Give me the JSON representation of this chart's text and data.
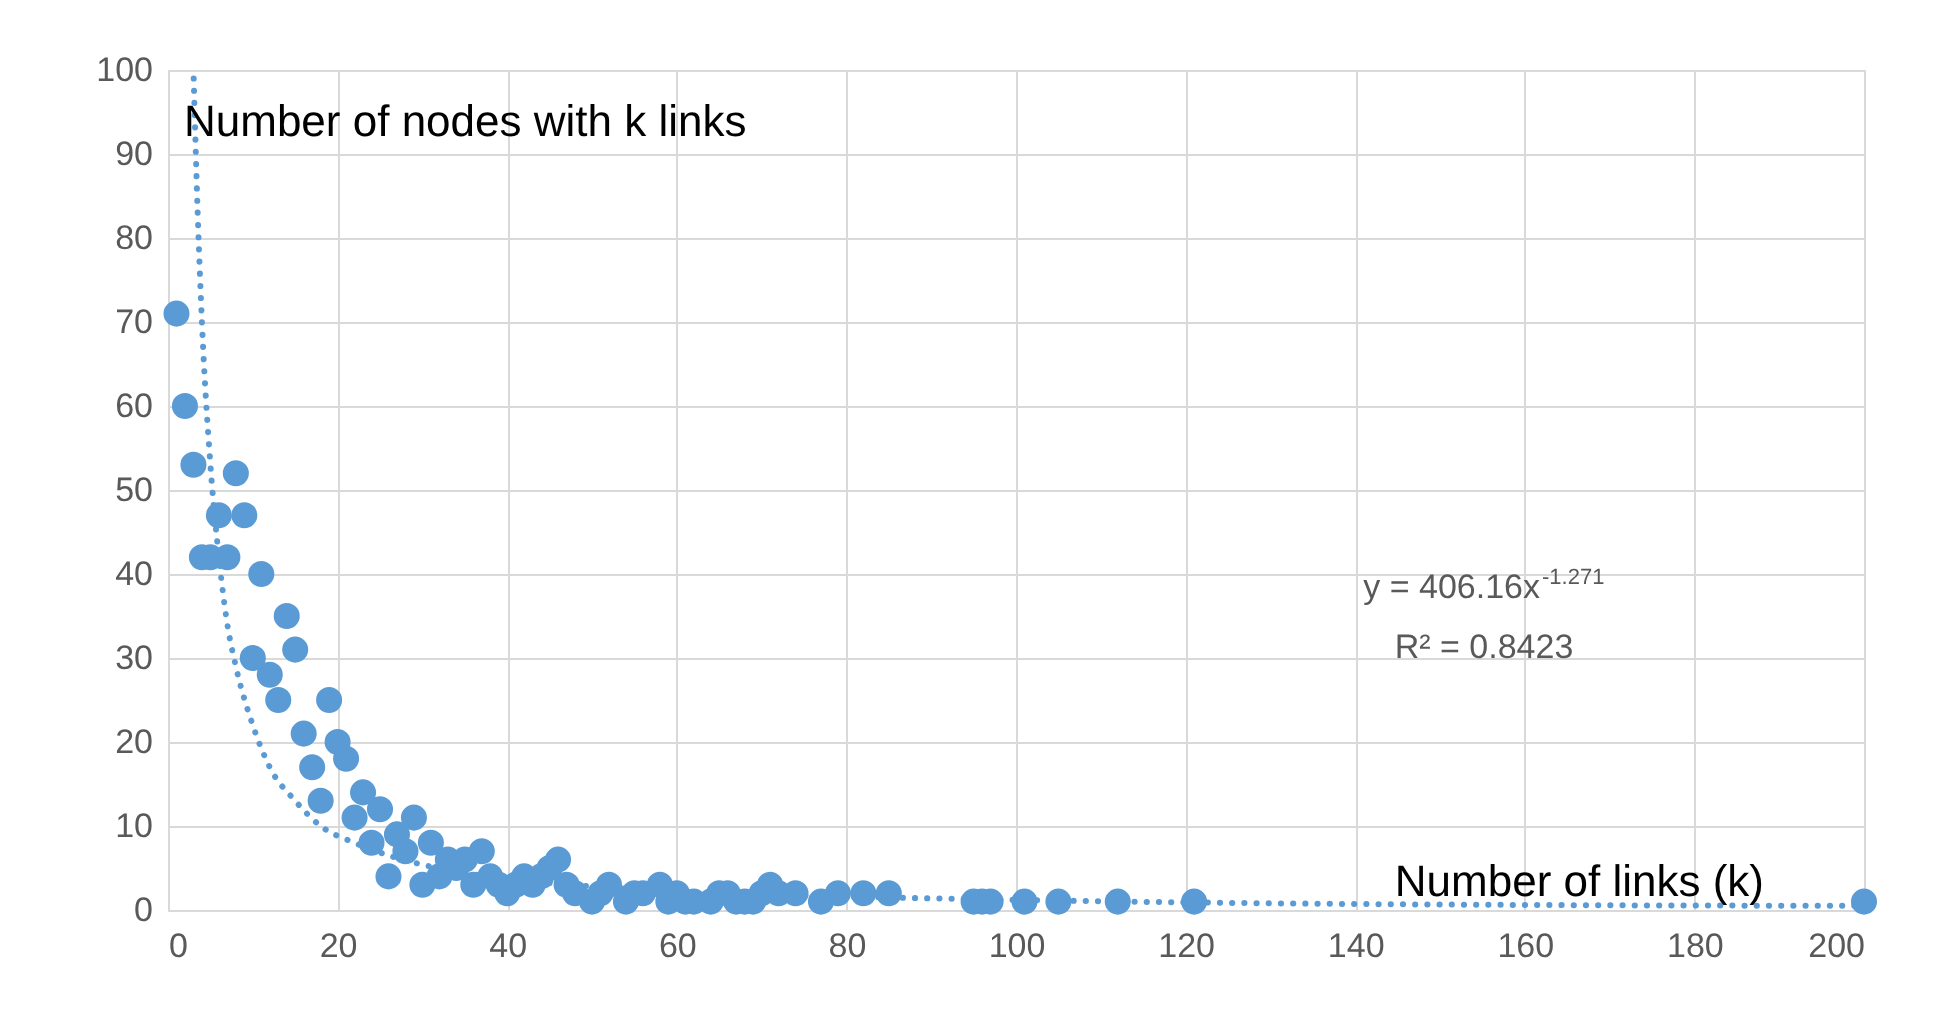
{
  "chart_data": {
    "type": "scatter",
    "xlabel": "Number of links (k)",
    "ylabel": "Number of nodes with k links",
    "xlim": [
      0,
      200
    ],
    "xticks": [
      0,
      20,
      40,
      60,
      80,
      100,
      120,
      140,
      160,
      180,
      200
    ],
    "ylim": [
      0,
      100
    ],
    "yticks": [
      0,
      10,
      20,
      30,
      40,
      50,
      60,
      70,
      80,
      90,
      100
    ],
    "grid": true,
    "marker": "circle",
    "annotations": [
      "y = 406.16x$^{-1.271}$",
      "R² = 0.8423"
    ],
    "series": [
      {
        "color": "#5b9bd5",
        "x": [
          1,
          2,
          3,
          4,
          5,
          6,
          7,
          8,
          9,
          10,
          11,
          12,
          13,
          14,
          15,
          16,
          17,
          18,
          19,
          20,
          21,
          22,
          23,
          24,
          25,
          26,
          27,
          28,
          29,
          30,
          31,
          32,
          33,
          34,
          35,
          36,
          37,
          38,
          39,
          40,
          41,
          42,
          43,
          44,
          45,
          46,
          47,
          48,
          50,
          51,
          52,
          54,
          55,
          56,
          58,
          59,
          60,
          61,
          62,
          64,
          65,
          66,
          67,
          68,
          69,
          70,
          71,
          72,
          74,
          77,
          79,
          82,
          85,
          95,
          96,
          97,
          101,
          105,
          112,
          121,
          200
        ],
        "values": [
          71,
          60,
          53,
          42,
          42,
          47,
          42,
          52,
          47,
          30,
          40,
          28,
          25,
          35,
          31,
          21,
          17,
          13,
          25,
          20,
          18,
          11,
          14,
          8,
          12,
          4,
          9,
          7,
          11,
          3,
          8,
          4,
          6,
          5,
          6,
          3,
          7,
          4,
          3,
          2,
          3,
          4,
          3,
          4,
          5,
          6,
          3,
          2,
          1,
          2,
          3,
          1,
          2,
          2,
          3,
          1,
          2,
          1,
          1,
          1,
          2,
          2,
          1,
          1,
          1,
          2,
          3,
          2,
          2,
          1,
          2,
          2,
          2,
          1,
          1,
          1,
          1,
          1,
          1,
          1,
          1
        ]
      },
      {
        "type": "line",
        "line_style": "dotted",
        "marker": "none",
        "color": "#5b9bd5",
        "x": [
          3.03,
          3.5,
          4,
          5,
          6,
          7,
          8,
          10,
          12,
          15,
          18,
          22,
          26,
          30,
          35,
          40,
          50,
          60,
          80,
          100,
          130,
          160,
          200
        ],
        "values": [
          99,
          83,
          70,
          53,
          42,
          34,
          29,
          22,
          17,
          13,
          10,
          8,
          6.5,
          5.4,
          4.4,
          3.7,
          2.8,
          2.2,
          1.6,
          1.2,
          0.8,
          0.6,
          0.5
        ]
      }
    ]
  }
}
